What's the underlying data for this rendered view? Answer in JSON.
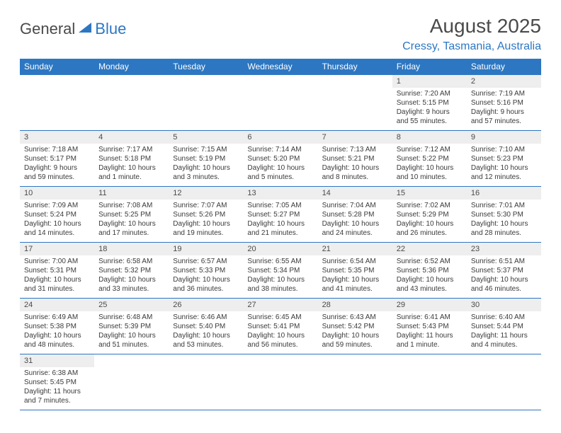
{
  "logo": {
    "text_general": "General",
    "text_blue": "Blue",
    "sail_color": "#2d77c2"
  },
  "header": {
    "month_title": "August 2025",
    "location": "Cressy, Tasmania, Australia"
  },
  "theme": {
    "accent": "#2d77c2",
    "header_bg": "#2d77c2",
    "header_text": "#ffffff",
    "daynum_bg": "#eeeeee",
    "text": "#3a3a3a"
  },
  "days_of_week": [
    "Sunday",
    "Monday",
    "Tuesday",
    "Wednesday",
    "Thursday",
    "Friday",
    "Saturday"
  ],
  "weeks": [
    [
      null,
      null,
      null,
      null,
      null,
      {
        "n": "1",
        "sunrise": "Sunrise: 7:20 AM",
        "sunset": "Sunset: 5:15 PM",
        "d1": "Daylight: 9 hours",
        "d2": "and 55 minutes."
      },
      {
        "n": "2",
        "sunrise": "Sunrise: 7:19 AM",
        "sunset": "Sunset: 5:16 PM",
        "d1": "Daylight: 9 hours",
        "d2": "and 57 minutes."
      }
    ],
    [
      {
        "n": "3",
        "sunrise": "Sunrise: 7:18 AM",
        "sunset": "Sunset: 5:17 PM",
        "d1": "Daylight: 9 hours",
        "d2": "and 59 minutes."
      },
      {
        "n": "4",
        "sunrise": "Sunrise: 7:17 AM",
        "sunset": "Sunset: 5:18 PM",
        "d1": "Daylight: 10 hours",
        "d2": "and 1 minute."
      },
      {
        "n": "5",
        "sunrise": "Sunrise: 7:15 AM",
        "sunset": "Sunset: 5:19 PM",
        "d1": "Daylight: 10 hours",
        "d2": "and 3 minutes."
      },
      {
        "n": "6",
        "sunrise": "Sunrise: 7:14 AM",
        "sunset": "Sunset: 5:20 PM",
        "d1": "Daylight: 10 hours",
        "d2": "and 5 minutes."
      },
      {
        "n": "7",
        "sunrise": "Sunrise: 7:13 AM",
        "sunset": "Sunset: 5:21 PM",
        "d1": "Daylight: 10 hours",
        "d2": "and 8 minutes."
      },
      {
        "n": "8",
        "sunrise": "Sunrise: 7:12 AM",
        "sunset": "Sunset: 5:22 PM",
        "d1": "Daylight: 10 hours",
        "d2": "and 10 minutes."
      },
      {
        "n": "9",
        "sunrise": "Sunrise: 7:10 AM",
        "sunset": "Sunset: 5:23 PM",
        "d1": "Daylight: 10 hours",
        "d2": "and 12 minutes."
      }
    ],
    [
      {
        "n": "10",
        "sunrise": "Sunrise: 7:09 AM",
        "sunset": "Sunset: 5:24 PM",
        "d1": "Daylight: 10 hours",
        "d2": "and 14 minutes."
      },
      {
        "n": "11",
        "sunrise": "Sunrise: 7:08 AM",
        "sunset": "Sunset: 5:25 PM",
        "d1": "Daylight: 10 hours",
        "d2": "and 17 minutes."
      },
      {
        "n": "12",
        "sunrise": "Sunrise: 7:07 AM",
        "sunset": "Sunset: 5:26 PM",
        "d1": "Daylight: 10 hours",
        "d2": "and 19 minutes."
      },
      {
        "n": "13",
        "sunrise": "Sunrise: 7:05 AM",
        "sunset": "Sunset: 5:27 PM",
        "d1": "Daylight: 10 hours",
        "d2": "and 21 minutes."
      },
      {
        "n": "14",
        "sunrise": "Sunrise: 7:04 AM",
        "sunset": "Sunset: 5:28 PM",
        "d1": "Daylight: 10 hours",
        "d2": "and 24 minutes."
      },
      {
        "n": "15",
        "sunrise": "Sunrise: 7:02 AM",
        "sunset": "Sunset: 5:29 PM",
        "d1": "Daylight: 10 hours",
        "d2": "and 26 minutes."
      },
      {
        "n": "16",
        "sunrise": "Sunrise: 7:01 AM",
        "sunset": "Sunset: 5:30 PM",
        "d1": "Daylight: 10 hours",
        "d2": "and 28 minutes."
      }
    ],
    [
      {
        "n": "17",
        "sunrise": "Sunrise: 7:00 AM",
        "sunset": "Sunset: 5:31 PM",
        "d1": "Daylight: 10 hours",
        "d2": "and 31 minutes."
      },
      {
        "n": "18",
        "sunrise": "Sunrise: 6:58 AM",
        "sunset": "Sunset: 5:32 PM",
        "d1": "Daylight: 10 hours",
        "d2": "and 33 minutes."
      },
      {
        "n": "19",
        "sunrise": "Sunrise: 6:57 AM",
        "sunset": "Sunset: 5:33 PM",
        "d1": "Daylight: 10 hours",
        "d2": "and 36 minutes."
      },
      {
        "n": "20",
        "sunrise": "Sunrise: 6:55 AM",
        "sunset": "Sunset: 5:34 PM",
        "d1": "Daylight: 10 hours",
        "d2": "and 38 minutes."
      },
      {
        "n": "21",
        "sunrise": "Sunrise: 6:54 AM",
        "sunset": "Sunset: 5:35 PM",
        "d1": "Daylight: 10 hours",
        "d2": "and 41 minutes."
      },
      {
        "n": "22",
        "sunrise": "Sunrise: 6:52 AM",
        "sunset": "Sunset: 5:36 PM",
        "d1": "Daylight: 10 hours",
        "d2": "and 43 minutes."
      },
      {
        "n": "23",
        "sunrise": "Sunrise: 6:51 AM",
        "sunset": "Sunset: 5:37 PM",
        "d1": "Daylight: 10 hours",
        "d2": "and 46 minutes."
      }
    ],
    [
      {
        "n": "24",
        "sunrise": "Sunrise: 6:49 AM",
        "sunset": "Sunset: 5:38 PM",
        "d1": "Daylight: 10 hours",
        "d2": "and 48 minutes."
      },
      {
        "n": "25",
        "sunrise": "Sunrise: 6:48 AM",
        "sunset": "Sunset: 5:39 PM",
        "d1": "Daylight: 10 hours",
        "d2": "and 51 minutes."
      },
      {
        "n": "26",
        "sunrise": "Sunrise: 6:46 AM",
        "sunset": "Sunset: 5:40 PM",
        "d1": "Daylight: 10 hours",
        "d2": "and 53 minutes."
      },
      {
        "n": "27",
        "sunrise": "Sunrise: 6:45 AM",
        "sunset": "Sunset: 5:41 PM",
        "d1": "Daylight: 10 hours",
        "d2": "and 56 minutes."
      },
      {
        "n": "28",
        "sunrise": "Sunrise: 6:43 AM",
        "sunset": "Sunset: 5:42 PM",
        "d1": "Daylight: 10 hours",
        "d2": "and 59 minutes."
      },
      {
        "n": "29",
        "sunrise": "Sunrise: 6:41 AM",
        "sunset": "Sunset: 5:43 PM",
        "d1": "Daylight: 11 hours",
        "d2": "and 1 minute."
      },
      {
        "n": "30",
        "sunrise": "Sunrise: 6:40 AM",
        "sunset": "Sunset: 5:44 PM",
        "d1": "Daylight: 11 hours",
        "d2": "and 4 minutes."
      }
    ],
    [
      {
        "n": "31",
        "sunrise": "Sunrise: 6:38 AM",
        "sunset": "Sunset: 5:45 PM",
        "d1": "Daylight: 11 hours",
        "d2": "and 7 minutes."
      },
      null,
      null,
      null,
      null,
      null,
      null
    ]
  ]
}
